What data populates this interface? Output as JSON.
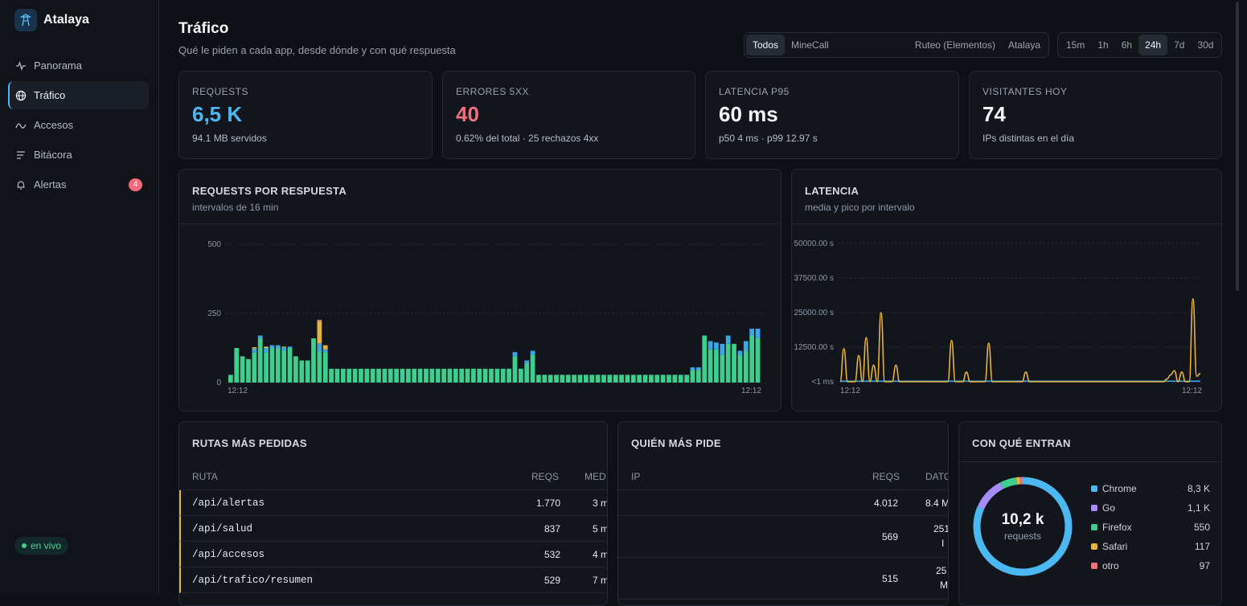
{
  "app": {
    "name": "Atalaya"
  },
  "nav": {
    "items": [
      {
        "label": "Panorama",
        "icon": "activity-icon"
      },
      {
        "label": "Tráfico",
        "icon": "globe-icon",
        "active": true
      },
      {
        "label": "Accesos",
        "icon": "wave-icon"
      },
      {
        "label": "Bitácora",
        "icon": "list-icon"
      },
      {
        "label": "Alertas",
        "icon": "bell-icon",
        "badge": "4"
      }
    ],
    "live": "en vivo"
  },
  "header": {
    "title": "Tráfico",
    "subtitle": "Qué le piden a cada app, desde dónde y con qué respuesta"
  },
  "app_filter": [
    "Todos",
    "MineCall",
    "Ruteo (Elementos)",
    "Atalaya"
  ],
  "app_filter_selected": "Todos",
  "range_filter": [
    "15m",
    "1h",
    "6h",
    "24h",
    "7d",
    "30d"
  ],
  "range_filter_selected": "24h",
  "kpis": [
    {
      "label": "REQUESTS",
      "value": "6,5 K",
      "sub": "94.1 MB servidos",
      "color": "#4cb8f2"
    },
    {
      "label": "ERRORES 5XX",
      "value": "40",
      "sub": "0.62% del total · 25 rechazos 4xx",
      "color": "#f0707f"
    },
    {
      "label": "LATENCIA P95",
      "value": "60 ms",
      "sub": "p50 4 ms · p99 12.97 s",
      "color": "#f4f6f9"
    },
    {
      "label": "VISITANTES HOY",
      "value": "74",
      "sub": "IPs distintas en el día",
      "color": "#f4f6f9"
    }
  ],
  "requests_panel": {
    "title": "REQUESTS POR RESPUESTA",
    "subtitle": "intervalos de 16 min"
  },
  "latency_panel": {
    "title": "LATENCIA",
    "subtitle": "media y pico por intervalo"
  },
  "chart_data": [
    {
      "type": "bar",
      "stacked": true,
      "y_ticks": [
        "500",
        "250",
        "0"
      ],
      "ylim": [
        0,
        500
      ],
      "x_tick_labels": [
        "12:12",
        "12:12"
      ],
      "series": [
        {
          "color": "#3ecf8e",
          "values": [
            28,
            125,
            95,
            85,
            108,
            160,
            110,
            125,
            125,
            115,
            125,
            95,
            80,
            80,
            160,
            112,
            110,
            50,
            50,
            50,
            50,
            50,
            50,
            50,
            50,
            50,
            50,
            50,
            50,
            50,
            50,
            50,
            50,
            50,
            50,
            50,
            50,
            50,
            50,
            50,
            50,
            50,
            50,
            50,
            50,
            50,
            50,
            50,
            95,
            50,
            70,
            100,
            28,
            28,
            28,
            28,
            28,
            28,
            28,
            28,
            28,
            28,
            28,
            28,
            28,
            28,
            28,
            28,
            28,
            28,
            28,
            28,
            28,
            28,
            28,
            28,
            28,
            28,
            45,
            45,
            170,
            120,
            120,
            100,
            140,
            140,
            100,
            115,
            170,
            160
          ]
        },
        {
          "color": "#3aa8e6",
          "values": [
            0,
            0,
            0,
            0,
            15,
            10,
            15,
            10,
            10,
            12,
            5,
            0,
            0,
            0,
            0,
            30,
            10,
            0,
            0,
            0,
            0,
            0,
            0,
            0,
            0,
            0,
            0,
            0,
            0,
            0,
            0,
            0,
            0,
            0,
            0,
            0,
            0,
            0,
            0,
            0,
            0,
            0,
            0,
            0,
            0,
            0,
            0,
            0,
            15,
            0,
            10,
            15,
            0,
            0,
            0,
            0,
            0,
            0,
            0,
            0,
            0,
            0,
            0,
            0,
            0,
            0,
            0,
            0,
            0,
            0,
            0,
            0,
            0,
            0,
            0,
            0,
            0,
            0,
            10,
            10,
            0,
            30,
            25,
            40,
            30,
            0,
            15,
            35,
            25,
            35
          ]
        },
        {
          "color": "#e8b339",
          "values": [
            0,
            0,
            0,
            0,
            5,
            0,
            5,
            0,
            0,
            3,
            0,
            0,
            0,
            0,
            0,
            80,
            15,
            0,
            0,
            0,
            0,
            0,
            0,
            0,
            0,
            0,
            0,
            0,
            0,
            0,
            0,
            0,
            0,
            0,
            0,
            0,
            0,
            0,
            0,
            0,
            0,
            0,
            0,
            0,
            0,
            0,
            0,
            0,
            0,
            0,
            0,
            0,
            0,
            0,
            0,
            0,
            0,
            0,
            0,
            0,
            0,
            0,
            0,
            0,
            0,
            0,
            0,
            0,
            0,
            0,
            0,
            0,
            0,
            0,
            0,
            0,
            0,
            0,
            0,
            0,
            0,
            0,
            0,
            0,
            0,
            0,
            0,
            0,
            0,
            0
          ]
        },
        {
          "color": "#f0707f",
          "values": [
            0,
            0,
            0,
            0,
            0,
            0,
            0,
            0,
            0,
            0,
            0,
            0,
            0,
            0,
            0,
            5,
            0,
            0,
            0,
            0,
            0,
            0,
            0,
            0,
            0,
            0,
            0,
            0,
            0,
            0,
            0,
            0,
            0,
            0,
            0,
            0,
            0,
            0,
            0,
            0,
            0,
            0,
            0,
            0,
            0,
            0,
            0,
            0,
            0,
            0,
            0,
            0,
            0,
            0,
            0,
            0,
            0,
            0,
            0,
            0,
            0,
            0,
            0,
            0,
            0,
            0,
            0,
            0,
            0,
            0,
            0,
            0,
            0,
            0,
            0,
            0,
            0,
            0,
            0,
            0,
            0,
            0,
            0,
            0,
            0,
            0,
            0,
            0,
            0,
            0
          ]
        }
      ]
    },
    {
      "type": "line",
      "y_ticks": [
        "50000.00 s",
        "37500.00 s",
        "25000.00 s",
        "12500.00 s",
        "<1 ms"
      ],
      "ylim": [
        0,
        50000
      ],
      "x_tick_labels": [
        "12:12",
        "12:12"
      ],
      "series": [
        {
          "color": "#e8b339",
          "values": [
            0,
            12000,
            0,
            0,
            0,
            9500,
            0,
            16000,
            0,
            6000,
            0,
            25000,
            0,
            0,
            0,
            6000,
            0,
            0,
            0,
            0,
            0,
            0,
            0,
            0,
            0,
            0,
            0,
            0,
            0,
            0,
            15000,
            0,
            0,
            0,
            3500,
            0,
            0,
            0,
            0,
            0,
            14000,
            0,
            0,
            0,
            0,
            0,
            0,
            0,
            0,
            0,
            3500,
            0,
            0,
            0,
            0,
            0,
            0,
            0,
            0,
            0,
            0,
            0,
            0,
            0,
            0,
            0,
            0,
            0,
            0,
            0,
            0,
            0,
            0,
            0,
            0,
            0,
            0,
            0,
            0,
            0,
            0,
            0,
            0,
            0,
            0,
            0,
            0,
            0,
            1000,
            2500,
            4000,
            0,
            3500,
            0,
            0,
            30000,
            2000,
            3000
          ]
        },
        {
          "color": "#3aa8e6",
          "values": [
            200,
            200,
            200,
            200,
            200,
            200,
            200,
            200,
            200,
            200,
            200,
            200,
            200,
            200,
            200,
            200,
            200,
            200,
            200,
            200,
            200,
            200,
            200,
            200,
            200,
            200,
            200,
            200,
            200,
            200,
            200,
            200,
            200,
            200,
            200,
            200,
            200,
            200,
            200,
            200,
            200,
            200,
            200,
            200,
            200,
            200,
            200,
            200,
            200,
            200,
            200,
            200,
            200,
            200,
            200,
            200,
            200,
            200,
            200,
            200,
            200,
            200,
            200,
            200,
            200,
            200,
            200,
            200,
            200,
            200,
            200,
            200,
            200,
            200,
            200,
            200,
            200,
            200,
            200,
            200,
            200,
            200,
            200,
            200,
            200,
            200,
            200,
            200,
            200,
            200,
            200,
            200,
            200,
            200,
            200,
            200,
            200,
            200
          ]
        }
      ]
    },
    {
      "type": "pie",
      "center_value": "10,2 k",
      "center_label": "requests",
      "slices": [
        {
          "name": "Chrome",
          "label": "8,3 K",
          "value": 8300,
          "color": "#4cb8f2"
        },
        {
          "name": "Go",
          "label": "1,1 K",
          "value": 1100,
          "color": "#a78bfa"
        },
        {
          "name": "Firefox",
          "label": "550",
          "value": 550,
          "color": "#3ecf8e"
        },
        {
          "name": "Safari",
          "label": "117",
          "value": 117,
          "color": "#e8b339"
        },
        {
          "name": "otro",
          "label": "97",
          "value": 97,
          "color": "#f0707f"
        }
      ]
    }
  ],
  "routes": {
    "title": "RUTAS MÁS PEDIDAS",
    "headers": [
      "RUTA",
      "REQS",
      "MED"
    ],
    "rows": [
      {
        "route": "/api/alertas",
        "reqs": "1.770",
        "med": "3 m"
      },
      {
        "route": "/api/salud",
        "reqs": "837",
        "med": "5 m"
      },
      {
        "route": "/api/accesos",
        "reqs": "532",
        "med": "4 m"
      },
      {
        "route": "/api/trafico/resumen",
        "reqs": "529",
        "med": "7 m"
      }
    ]
  },
  "ips": {
    "title": "QUIÉN MÁS PIDE",
    "headers": [
      "IP",
      "REQS",
      "DATO"
    ],
    "rows": [
      {
        "ip": "",
        "reqs": "4.012",
        "data": "8.4 M"
      },
      {
        "ip": "",
        "reqs": "569",
        "data": "251",
        "data2": "I"
      },
      {
        "ip": "",
        "reqs": "515",
        "data": "25",
        "data2": "M"
      }
    ]
  },
  "clients": {
    "title": "CON QUÉ ENTRAN"
  }
}
